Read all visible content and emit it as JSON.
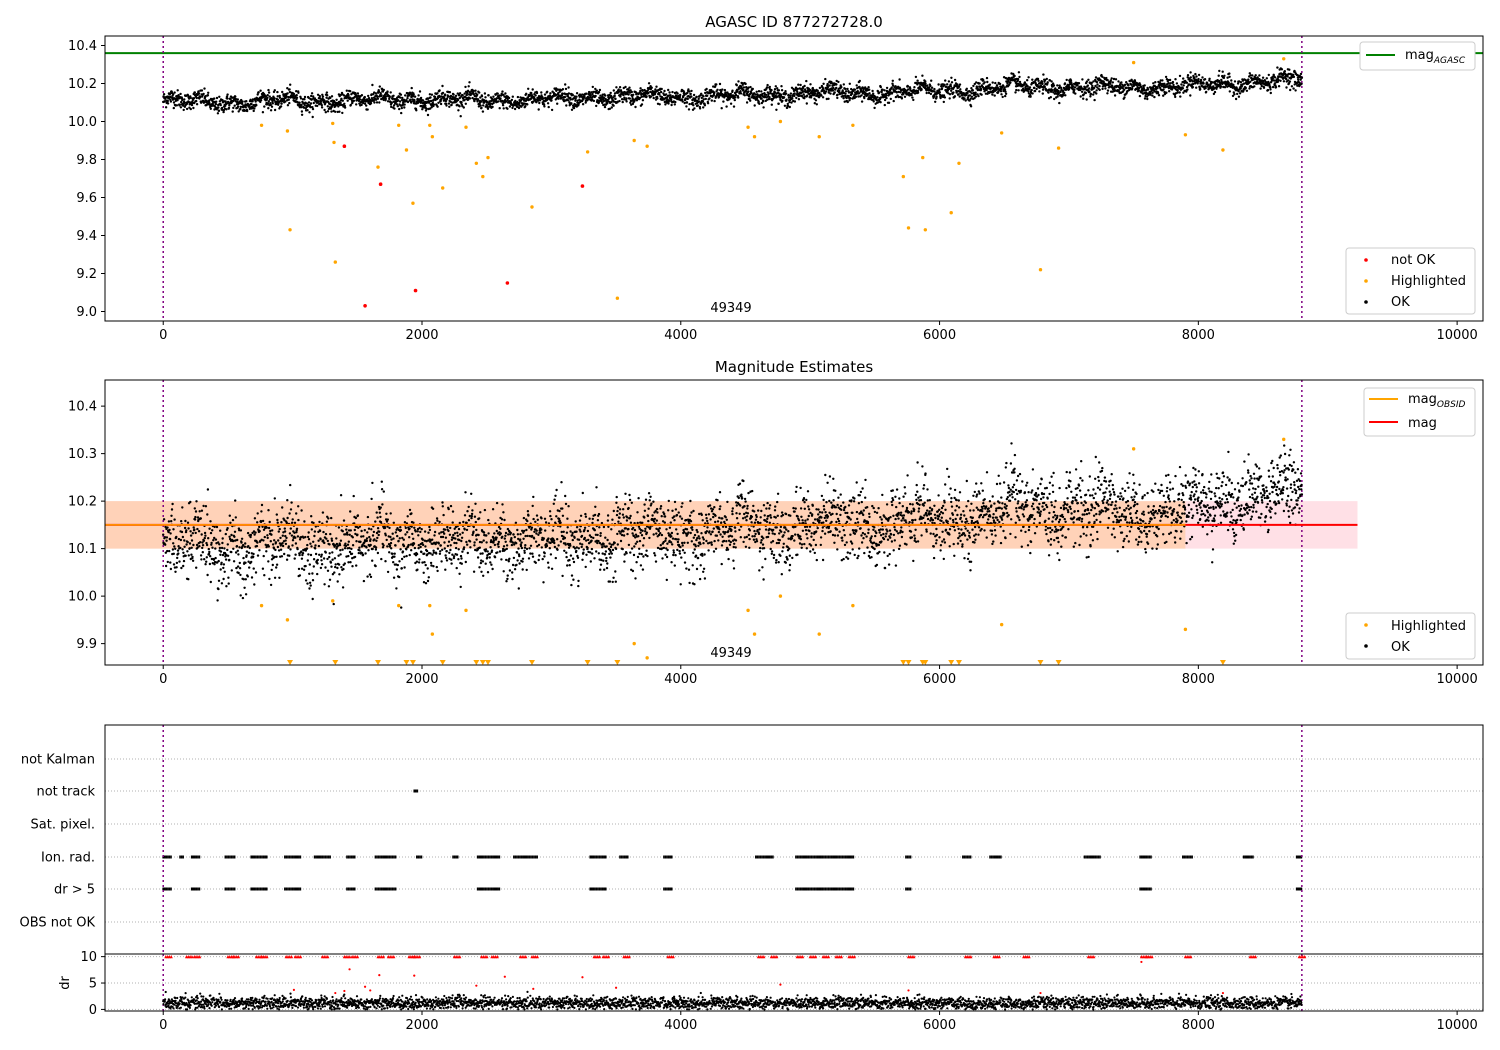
{
  "figure": {
    "title": "AGASC ID 877272728.0",
    "obsid_label": "49349"
  },
  "chart_data": [
    {
      "type": "scatter",
      "title": "AGASC ID 877272728.0",
      "xlim": [
        -450,
        10200
      ],
      "ylim": [
        8.95,
        10.45
      ],
      "x_ticks": [
        0,
        2000,
        4000,
        6000,
        8000,
        10000
      ],
      "x_tick_labels": [
        "0",
        "2000",
        "4000",
        "6000",
        "8000",
        "10000"
      ],
      "y_ticks": [
        9.0,
        9.2,
        9.4,
        9.6,
        9.8,
        10.0,
        10.2,
        10.4
      ],
      "y_tick_labels": [
        "9.0",
        "9.2",
        "9.4",
        "9.6",
        "9.8",
        "10.0",
        "10.2",
        "10.4"
      ],
      "vlines": [
        0,
        8800
      ],
      "annotation": "49349",
      "legend_top": {
        "placement": "top-right",
        "entries": [
          {
            "name": "mag_AGASC",
            "color": "#008000"
          }
        ]
      },
      "legend_bottom": {
        "placement": "lower-right",
        "entries": [
          {
            "name": "not OK",
            "color": "#ff0000"
          },
          {
            "name": "Highlighted",
            "color": "#ffa500"
          },
          {
            "name": "OK",
            "color": "#000000"
          }
        ]
      },
      "mag_agasc": 10.36,
      "ok_trend": {
        "x": [
          0,
          500,
          1000,
          1500,
          2000,
          2500,
          3000,
          3500,
          4000,
          4500,
          5000,
          5500,
          6000,
          6500,
          7000,
          7500,
          8000,
          8500,
          8800
        ],
        "y": [
          10.11,
          10.1,
          10.11,
          10.11,
          10.12,
          10.11,
          10.12,
          10.13,
          10.13,
          10.14,
          10.15,
          10.15,
          10.16,
          10.18,
          10.18,
          10.18,
          10.19,
          10.21,
          10.22
        ]
      },
      "not_ok": {
        "x": [
          1400,
          1680,
          1560,
          1950,
          2660,
          3240
        ],
        "y": [
          9.87,
          9.67,
          9.03,
          9.11,
          9.15,
          9.66
        ]
      },
      "highlighted": {
        "x": [
          760,
          960,
          980,
          1310,
          1320,
          1330,
          1660,
          1820,
          1880,
          1930,
          2060,
          2080,
          2160,
          2340,
          2420,
          2470,
          2510,
          2850,
          3280,
          3510,
          3640,
          3740,
          4520,
          4570,
          4770,
          5070,
          5330,
          5720,
          5760,
          5870,
          5890,
          6090,
          6150,
          6480,
          6780,
          6920,
          7500,
          7900,
          8190,
          8660
        ],
        "y": [
          9.98,
          9.95,
          9.43,
          9.99,
          9.89,
          9.26,
          9.76,
          9.98,
          9.85,
          9.57,
          9.98,
          9.92,
          9.65,
          9.97,
          9.78,
          9.71,
          9.81,
          9.55,
          9.84,
          9.07,
          9.9,
          9.87,
          9.97,
          9.92,
          10.0,
          9.92,
          9.98,
          9.71,
          9.44,
          9.81,
          9.43,
          9.52,
          9.78,
          9.94,
          9.22,
          9.86,
          10.31,
          9.93,
          9.85,
          10.33
        ]
      }
    },
    {
      "type": "scatter",
      "title": "Magnitude Estimates",
      "xlim": [
        -450,
        10200
      ],
      "ylim": [
        9.855,
        10.455
      ],
      "x_ticks": [
        0,
        2000,
        4000,
        6000,
        8000,
        10000
      ],
      "x_tick_labels": [
        "0",
        "2000",
        "4000",
        "6000",
        "8000",
        "10000"
      ],
      "y_ticks": [
        9.9,
        10.0,
        10.1,
        10.2,
        10.3,
        10.4
      ],
      "y_tick_labels": [
        "9.9",
        "10.0",
        "10.1",
        "10.2",
        "10.3",
        "10.4"
      ],
      "vlines": [
        0,
        8800
      ],
      "annotation": "49349",
      "legend_top": {
        "placement": "top-right",
        "entries": [
          {
            "name": "mag_OBSID",
            "color": "#ffa500"
          },
          {
            "name": "mag",
            "color": "#ff0000"
          }
        ]
      },
      "legend_bottom": {
        "placement": "lower-right",
        "entries": [
          {
            "name": "Highlighted",
            "color": "#ffa500"
          },
          {
            "name": "OK",
            "color": "#000000"
          }
        ]
      },
      "mag": 10.15,
      "mag_band": [
        10.1,
        10.2
      ],
      "band_x": [
        -450,
        9230
      ],
      "obsid_band_x": [
        -450,
        7900
      ],
      "mag_obsid": 10.15,
      "highlighted": {
        "x": [
          760,
          960,
          1310,
          1820,
          2060,
          2080,
          2340,
          3640,
          3740,
          4520,
          4570,
          4770,
          5070,
          5330,
          6480,
          7500,
          7900,
          8660
        ],
        "y": [
          9.98,
          9.95,
          9.99,
          9.98,
          9.98,
          9.92,
          9.97,
          9.9,
          9.87,
          9.97,
          9.92,
          10.0,
          9.92,
          9.98,
          9.94,
          10.31,
          9.93,
          10.33
        ]
      },
      "below_range_x": [
        980,
        1330,
        1660,
        1880,
        1930,
        2160,
        2420,
        2470,
        2510,
        2850,
        3280,
        3510,
        5720,
        5760,
        5870,
        5890,
        6090,
        6150,
        6780,
        6920,
        8190
      ]
    },
    {
      "type": "scatter",
      "title": "",
      "xlim": [
        -450,
        10200
      ],
      "categories": [
        "not Kalman",
        "not track",
        "Sat. pixel.",
        "Ion. rad.",
        "dr > 5",
        "OBS not OK"
      ],
      "flag_ranges": {
        "not track": [
          [
            1940,
            1970
          ]
        ],
        "Ion. rad.": [
          [
            0,
            60
          ],
          [
            130,
            160
          ],
          [
            220,
            290
          ],
          [
            480,
            560
          ],
          [
            680,
            800
          ],
          [
            940,
            1060
          ],
          [
            1170,
            1290
          ],
          [
            1420,
            1480
          ],
          [
            1640,
            1800
          ],
          [
            1960,
            2000
          ],
          [
            2240,
            2280
          ],
          [
            2430,
            2600
          ],
          [
            2710,
            2900
          ],
          [
            3300,
            3420
          ],
          [
            3530,
            3590
          ],
          [
            3870,
            3940
          ],
          [
            4580,
            4720
          ],
          [
            4890,
            5340
          ],
          [
            5740,
            5780
          ],
          [
            6180,
            6240
          ],
          [
            6390,
            6480
          ],
          [
            7120,
            7240
          ],
          [
            7550,
            7640
          ],
          [
            7880,
            7960
          ],
          [
            8350,
            8430
          ],
          [
            8760,
            8800
          ]
        ],
        "dr > 5": [
          [
            0,
            60
          ],
          [
            220,
            290
          ],
          [
            480,
            560
          ],
          [
            680,
            800
          ],
          [
            940,
            1060
          ],
          [
            1420,
            1480
          ],
          [
            1640,
            1800
          ],
          [
            2430,
            2600
          ],
          [
            3300,
            3420
          ],
          [
            3870,
            3940
          ],
          [
            4890,
            5340
          ],
          [
            5740,
            5780
          ],
          [
            7550,
            7640
          ],
          [
            8760,
            8800
          ]
        ]
      }
    },
    {
      "type": "scatter",
      "title": "",
      "xlim": [
        -450,
        10200
      ],
      "ylim": [
        -0.3,
        10.5
      ],
      "ylabel": "dr",
      "x_ticks": [
        0,
        2000,
        4000,
        6000,
        8000,
        10000
      ],
      "x_tick_labels": [
        "0",
        "2000",
        "4000",
        "6000",
        "8000",
        "10000"
      ],
      "y_ticks": [
        0,
        5,
        10
      ],
      "y_tick_labels": [
        "0",
        "5",
        "10"
      ],
      "vlines": [
        0,
        8800
      ],
      "dr_clipped_x": [
        20,
        180,
        240,
        500,
        540,
        720,
        760,
        950,
        1020,
        1230,
        1400,
        1460,
        1660,
        1740,
        1900,
        1940,
        2250,
        2460,
        2540,
        2760,
        2850,
        3330,
        3400,
        3560,
        3900,
        4600,
        4700,
        4900,
        5000,
        5100,
        5200,
        5300,
        5760,
        6200,
        6420,
        6650,
        7150,
        7560,
        7600,
        7900,
        8400,
        8780
      ],
      "dr_outliers": {
        "x": [
          1010,
          1330,
          1400,
          1440,
          1560,
          1600,
          1670,
          1940,
          2420,
          2640,
          2860,
          3240,
          3500,
          4770,
          5760,
          6780,
          7560,
          8190
        ],
        "y": [
          3.7,
          3.1,
          3.5,
          7.6,
          4.3,
          3.6,
          6.5,
          6.4,
          4.5,
          6.2,
          3.9,
          6.1,
          4.1,
          4.7,
          3.6,
          3.1,
          9.0,
          3.1
        ]
      }
    }
  ]
}
